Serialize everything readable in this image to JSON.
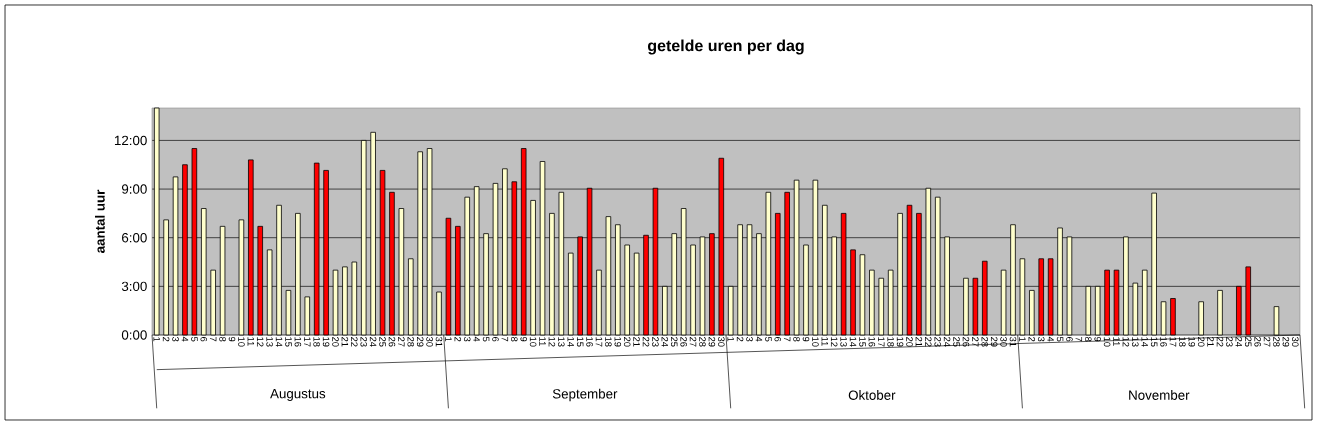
{
  "chart_data": {
    "type": "bar",
    "title": "getelde uren per dag",
    "ylabel": "aantal uur",
    "categories": [
      "1",
      "2",
      "3",
      "4",
      "5",
      "6",
      "7",
      "8",
      "9",
      "10",
      "11",
      "12",
      "13",
      "14",
      "15",
      "16",
      "17",
      "18",
      "19",
      "20",
      "21",
      "22",
      "23",
      "24",
      "25",
      "26",
      "27",
      "28",
      "29",
      "30",
      "31",
      "1",
      "2",
      "3",
      "4",
      "5",
      "6",
      "7",
      "8",
      "9",
      "10",
      "11",
      "12",
      "13",
      "14",
      "15",
      "16",
      "17",
      "18",
      "19",
      "20",
      "21",
      "22",
      "23",
      "24",
      "25",
      "26",
      "27",
      "28",
      "29",
      "30",
      "1",
      "2",
      "3",
      "4",
      "5",
      "6",
      "7",
      "8",
      "9",
      "10",
      "11",
      "12",
      "13",
      "14",
      "15",
      "16",
      "17",
      "18",
      "19",
      "20",
      "21",
      "22",
      "23",
      "24",
      "25",
      "26",
      "27",
      "28",
      "29",
      "30",
      "31",
      "1",
      "2",
      "3",
      "4",
      "5",
      "6",
      "7",
      "8",
      "9",
      "10",
      "11",
      "12",
      "13",
      "14",
      "15",
      "16",
      "17",
      "18",
      "19",
      "20",
      "21",
      "22",
      "23",
      "24",
      "25",
      "26",
      "27",
      "28",
      "29",
      "30"
    ],
    "values": [
      14.0,
      7.1,
      9.75,
      10.5,
      11.5,
      7.8,
      4.0,
      6.7,
      null,
      7.1,
      10.8,
      6.7,
      5.25,
      8.0,
      2.75,
      7.5,
      2.35,
      10.6,
      10.15,
      4.0,
      4.2,
      4.5,
      12.0,
      12.5,
      10.15,
      8.8,
      7.8,
      4.7,
      11.3,
      11.5,
      2.65,
      7.2,
      6.7,
      8.5,
      9.15,
      6.25,
      9.35,
      10.25,
      9.45,
      11.5,
      8.3,
      10.7,
      7.5,
      8.8,
      5.05,
      6.05,
      9.05,
      4.0,
      7.3,
      6.8,
      5.55,
      5.05,
      6.15,
      9.05,
      3.0,
      6.25,
      7.8,
      5.55,
      6.05,
      6.25,
      10.9,
      3.0,
      6.8,
      6.8,
      6.25,
      8.8,
      7.5,
      8.8,
      9.55,
      5.55,
      9.55,
      8.0,
      6.05,
      7.5,
      5.25,
      4.95,
      4.0,
      3.5,
      4.0,
      7.5,
      8.0,
      7.5,
      9.05,
      8.5,
      6.05,
      null,
      3.5,
      3.5,
      4.55,
      null,
      4.0,
      6.8,
      4.7,
      2.75,
      4.7,
      4.7,
      6.6,
      6.05,
      null,
      3.0,
      3.0,
      4.0,
      4.0,
      6.05,
      3.2,
      4.0,
      8.75,
      2.05,
      2.25,
      null,
      null,
      2.05,
      null,
      2.75,
      null,
      3.0,
      4.2,
      null,
      null,
      1.75,
      null,
      null
    ],
    "colors": [
      "#ffffcc",
      "#ffffcc",
      "#ffffcc",
      "#ff0000",
      "#ff0000",
      "#ffffcc",
      "#ffffcc",
      "#ffffcc",
      "#ffffcc",
      "#ffffcc",
      "#ff0000",
      "#ff0000",
      "#ffffcc",
      "#ffffcc",
      "#ffffcc",
      "#ffffcc",
      "#ffffcc",
      "#ff0000",
      "#ff0000",
      "#ffffcc",
      "#ffffcc",
      "#ffffcc",
      "#ffffcc",
      "#ffffcc",
      "#ff0000",
      "#ff0000",
      "#ffffcc",
      "#ffffcc",
      "#ffffcc",
      "#ffffcc",
      "#ffffcc",
      "#ff0000",
      "#ff0000",
      "#ffffcc",
      "#ffffcc",
      "#ffffcc",
      "#ffffcc",
      "#ffffcc",
      "#ff0000",
      "#ff0000",
      "#ffffcc",
      "#ffffcc",
      "#ffffcc",
      "#ffffcc",
      "#ffffcc",
      "#ff0000",
      "#ff0000",
      "#ffffcc",
      "#ffffcc",
      "#ffffcc",
      "#ffffcc",
      "#ffffcc",
      "#ff0000",
      "#ff0000",
      "#ffffcc",
      "#ffffcc",
      "#ffffcc",
      "#ffffcc",
      "#ffffcc",
      "#ff0000",
      "#ff0000",
      "#ffffcc",
      "#ffffcc",
      "#ffffcc",
      "#ffffcc",
      "#ffffcc",
      "#ff0000",
      "#ff0000",
      "#ffffcc",
      "#ffffcc",
      "#ffffcc",
      "#ffffcc",
      "#ffffcc",
      "#ff0000",
      "#ff0000",
      "#ffffcc",
      "#ffffcc",
      "#ffffcc",
      "#ffffcc",
      "#ffffcc",
      "#ff0000",
      "#ff0000",
      "#ffffcc",
      "#ffffcc",
      "#ffffcc",
      "#ffffcc",
      "#ffffcc",
      "#ff0000",
      "#ff0000",
      "#ffffcc",
      "#ffffcc",
      "#ffffcc",
      "#ffffcc",
      "#ffffcc",
      "#ff0000",
      "#ff0000",
      "#ffffcc",
      "#ffffcc",
      "#ffffcc",
      "#ffffcc",
      "#ffffcc",
      "#ff0000",
      "#ff0000",
      "#ffffcc",
      "#ffffcc",
      "#ffffcc",
      "#ffffcc",
      "#ffffcc",
      "#ff0000",
      "#ff0000",
      "#ffffcc",
      "#ffffcc",
      "#ffffcc",
      "#ffffcc",
      "#ffffcc",
      "#ff0000",
      "#ff0000",
      "#ffffcc",
      "#ffffcc",
      "#ffffcc",
      "#ffffcc",
      "#ffffcc"
    ],
    "ylim": [
      0,
      14
    ],
    "yticks": [
      {
        "value": 0,
        "label": "0:00"
      },
      {
        "value": 3,
        "label": "3:00"
      },
      {
        "value": 6,
        "label": "6:00"
      },
      {
        "value": 9,
        "label": "9:00"
      },
      {
        "value": 12,
        "label": "12:00"
      }
    ],
    "grid": "y",
    "annotations": [
      "Augustus",
      "September",
      "Oktober",
      "November"
    ]
  }
}
